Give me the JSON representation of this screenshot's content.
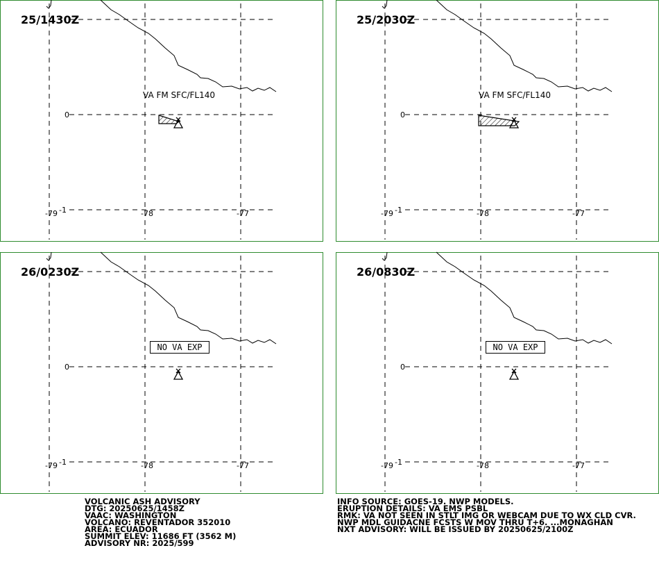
{
  "panels": [
    {
      "time": "25/1430Z",
      "label": "VA FM SFC/FL140",
      "ash": "area"
    },
    {
      "time": "25/2030Z",
      "label": "VA FM SFC/FL140",
      "ash": "area-large"
    },
    {
      "time": "26/0230Z",
      "label": "NO VA EXP",
      "ash": "none"
    },
    {
      "time": "26/0830Z",
      "label": "NO VA EXP",
      "ash": "none"
    }
  ],
  "grid": {
    "lat_labels": [
      "0",
      "-1"
    ],
    "lon_labels": [
      "-79",
      "-78",
      "-77"
    ]
  },
  "advisory_left": [
    "VOLCANIC ASH ADVISORY",
    "DTG: 20250625/1458Z",
    "VAAC: WASHINGTON",
    "VOLCANO: REVENTADOR 352010",
    "AREA: ECUADOR",
    "SUMMIT ELEV: 11686 FT (3562 M)",
    "ADVISORY NR: 2025/599"
  ],
  "advisory_right": [
    "INFO SOURCE: GOES-19. NWP MODELS.",
    "ERUPTION DETAILS: VA EMS PSBL",
    "RMK: VA NOT SEEN IN STLT IMG OR WEBCAM DUE TO WX CLD CVR.",
    "NWP MDL GUIDACNE FCSTS W MOV THRU T+6. ...MONAGHAN",
    "NXT ADVISORY: WILL BE ISSUED BY 20250625/2100Z"
  ]
}
